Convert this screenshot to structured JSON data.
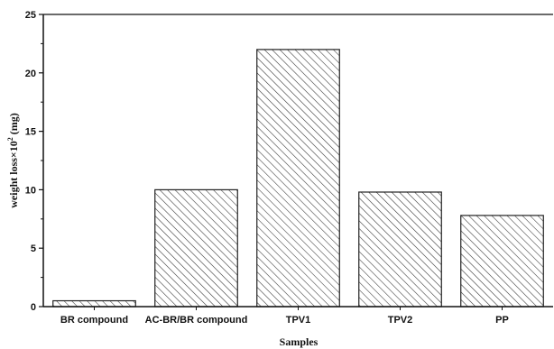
{
  "chart_data": {
    "type": "bar",
    "title": "",
    "xlabel": "Samples",
    "ylabel_main": "weight loss×10",
    "ylabel_sup": "2",
    "ylabel_unit": "(mg)",
    "categories": [
      "BR compound",
      "AC-BR/BR compound",
      "TPV1",
      "TPV2",
      "PP"
    ],
    "values": [
      0.5,
      10.0,
      22.0,
      9.8,
      7.8
    ],
    "ylim": [
      0,
      25
    ],
    "yticks": [
      0,
      5,
      10,
      15,
      20,
      25
    ],
    "grid": false,
    "legend": "none",
    "bar_fill": "hatched",
    "colors": {
      "bar_stroke": "#222222",
      "hatch": "#333333",
      "axis": "#111111"
    }
  }
}
